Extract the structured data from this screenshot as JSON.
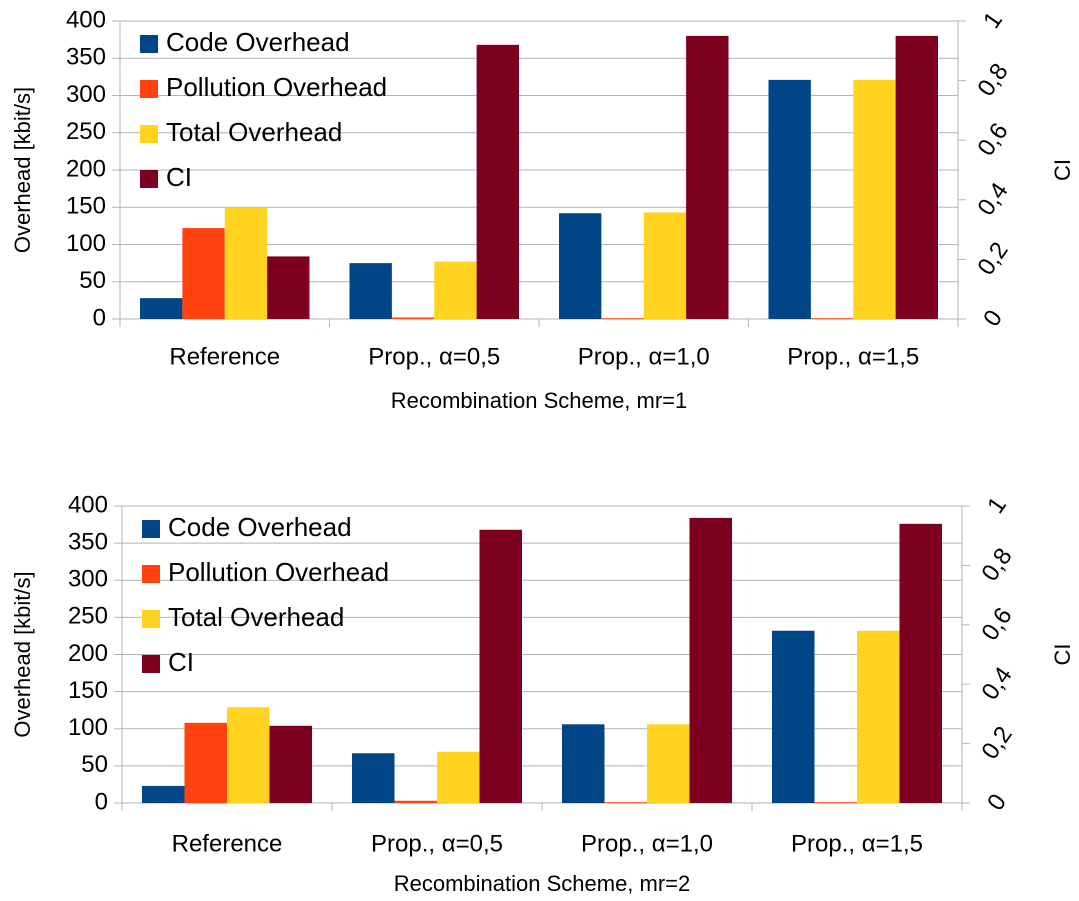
{
  "chart_data": [
    {
      "type": "bar",
      "x_label": "Recombination Scheme, mr=1",
      "y_label": "Overhead [kbit/s]",
      "y2_label": "CI",
      "categories": [
        "Reference",
        "Prop., α=0,5",
        "Prop., α=1,0",
        "Prop., α=1,5"
      ],
      "series": [
        {
          "name": "Code Overhead",
          "color": "#004586",
          "values": [
            28,
            75,
            142,
            321
          ]
        },
        {
          "name": "Pollution Overhead",
          "color": "#ff420e",
          "values": [
            122,
            2,
            1,
            1
          ]
        },
        {
          "name": "Total Overhead",
          "color": "#ffd320",
          "values": [
            150,
            77,
            143,
            321
          ]
        },
        {
          "name": "CI",
          "color": "#7e0021",
          "axis": "y2",
          "values": [
            0.21,
            0.92,
            0.95,
            0.95
          ]
        }
      ],
      "ylim": [
        0,
        400
      ],
      "yticks": [
        0,
        50,
        100,
        150,
        200,
        250,
        300,
        350,
        400
      ],
      "y2lim": [
        0,
        1
      ],
      "y2ticks": [
        0,
        {
          "value": 0.2,
          "label": "0,2"
        },
        {
          "value": 0.4,
          "label": "0,4"
        },
        {
          "value": 0.6,
          "label": "0,6"
        },
        {
          "value": 0.8,
          "label": "0,8"
        },
        1
      ],
      "grid": true,
      "legend": "upper left"
    },
    {
      "type": "bar",
      "x_label": "Recombination Scheme, mr=2",
      "y_label": "Overhead [kbit/s]",
      "y2_label": "CI",
      "categories": [
        "Reference",
        "Prop., α=0,5",
        "Prop., α=1,0",
        "Prop., α=1,5"
      ],
      "series": [
        {
          "name": "Code Overhead",
          "color": "#004586",
          "values": [
            23,
            67,
            106,
            232
          ]
        },
        {
          "name": "Pollution Overhead",
          "color": "#ff420e",
          "values": [
            108,
            3,
            1,
            1
          ]
        },
        {
          "name": "Total Overhead",
          "color": "#ffd320",
          "values": [
            129,
            69,
            106,
            232
          ]
        },
        {
          "name": "CI",
          "color": "#7e0021",
          "axis": "y2",
          "values": [
            0.26,
            0.92,
            0.96,
            0.94
          ]
        }
      ],
      "ylim": [
        0,
        400
      ],
      "yticks": [
        0,
        50,
        100,
        150,
        200,
        250,
        300,
        350,
        400
      ],
      "y2lim": [
        0,
        1
      ],
      "y2ticks": [
        0,
        {
          "value": 0.2,
          "label": "0,2"
        },
        {
          "value": 0.4,
          "label": "0,4"
        },
        {
          "value": 0.6,
          "label": "0,6"
        },
        {
          "value": 0.8,
          "label": "0,8"
        },
        1
      ],
      "grid": true,
      "legend": "upper left"
    }
  ]
}
